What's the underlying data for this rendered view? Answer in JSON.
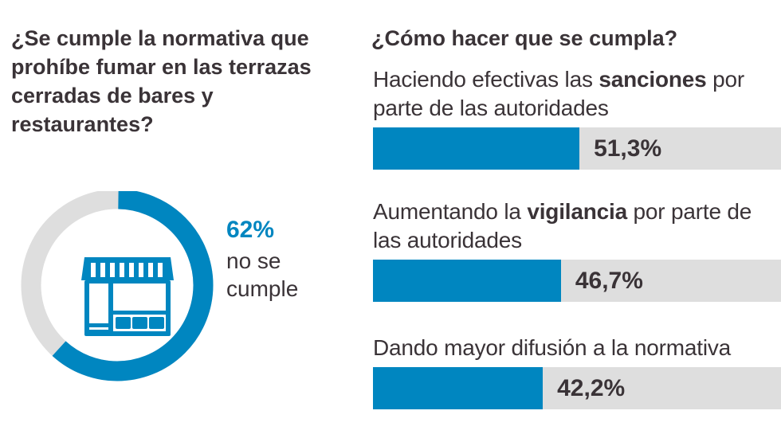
{
  "question_left": "¿Se cumple la normativa que prohíbe fumar en las terrazas cerradas de bares y restaurantes?",
  "question_right": "¿Cómo hacer que se cumpla?",
  "donut": {
    "percent_label": "62%",
    "label": "no se cumple",
    "value": 62,
    "icon": "storefront-icon"
  },
  "colors": {
    "accent": "#0086c0",
    "track": "#dedede",
    "text": "#3a3337"
  },
  "chart_data": {
    "type": "bar",
    "title": "¿Cómo hacer que se cumpla?",
    "categories": [
      "Haciendo efectivas las sanciones por parte de las autoridades",
      "Aumentando la vigilancia por parte de las autoridades",
      "Dando mayor difusión a la normativa"
    ],
    "values": [
      51.3,
      46.7,
      42.2
    ],
    "value_labels": [
      "51,3%",
      "46,7%",
      "42,2%"
    ],
    "ylim": [
      0,
      100
    ]
  },
  "items": [
    {
      "pre": "Haciendo efectivas las ",
      "bold": "sanciones",
      "post": " por parte de las autoridades"
    },
    {
      "pre": "Aumentando la ",
      "bold": "vigilancia",
      "post": " por parte de las autoridades"
    },
    {
      "pre": "Dando mayor difusión a la normativa",
      "bold": "",
      "post": ""
    }
  ]
}
